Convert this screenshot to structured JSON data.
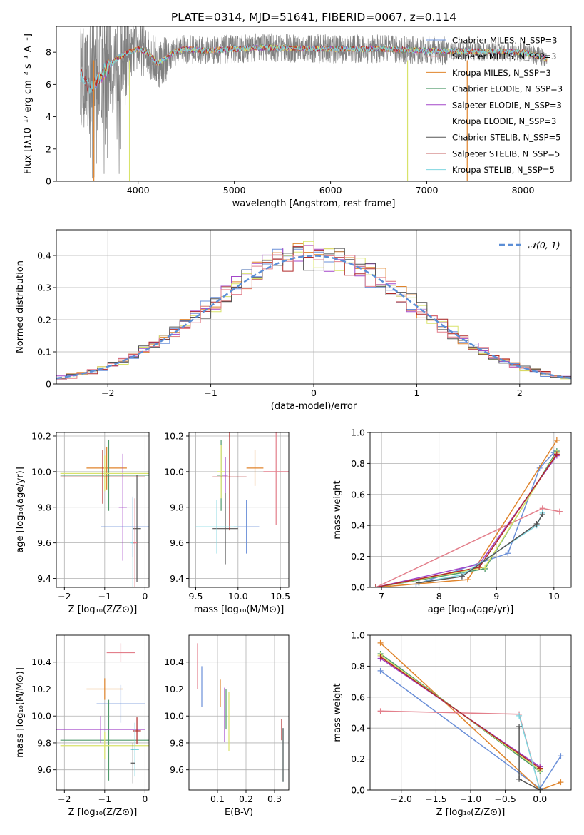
{
  "figure": {
    "title": "PLATE=0314, MJD=51641, FIBERID=0067, z=0.114"
  },
  "colors": {
    "chabrier_miles": "#6a8fd8",
    "salpeter_miles": "#e37f8b",
    "kroupa_miles": "#e0842b",
    "chabrier_elodie": "#4f9a6b",
    "salpeter_elodie": "#a347c9",
    "kroupa_elodie": "#d8e36a",
    "chabrier_stelib": "#555555",
    "salpeter_stelib": "#b02a2a",
    "kroupa_stelib": "#7fd6e0",
    "axes": "#000000",
    "grid": "#b0b0b0",
    "normal": "#5b8ed6"
  },
  "chart_data": [
    {
      "id": "spectrum",
      "type": "line",
      "xlabel": "wavelength [Angstrom, rest frame]",
      "ylabel": "Flux [fλ10⁻¹⁷ erg cm⁻² s⁻¹ A⁻¹]",
      "xlim": [
        3150,
        8500
      ],
      "ylim": [
        0,
        9.6
      ],
      "xticks": [
        4000,
        5000,
        6000,
        7000,
        8000
      ],
      "yticks": [
        0,
        2,
        4,
        6,
        8
      ],
      "grid": false,
      "legend_placement": "right",
      "legend": [
        "Chabrier MILES, N_SSP=3",
        "Salpeter MILES, N_SSP=3",
        "Kroupa MILES, N_SSP=3",
        "Chabrier ELODIE, N_SSP=3",
        "Salpeter ELODIE, N_SSP=3",
        "Kroupa ELODIE, N_SSP=3",
        "Chabrier STELIB, N_SSP=5",
        "Salpeter STELIB, N_SSP=5",
        "Kroupa STELIB, N_SSP=5"
      ],
      "continuum": {
        "x": [
          3400,
          3450,
          3500,
          3550,
          3600,
          3650,
          3700,
          3800,
          3900,
          4000,
          4100,
          4200,
          4300,
          4400,
          4500,
          4700,
          5000,
          5300,
          5600,
          6000,
          6500,
          7000,
          7500,
          8000,
          8250
        ],
        "y": [
          6.7,
          6.2,
          5.7,
          6.0,
          6.4,
          6.8,
          7.2,
          7.7,
          8.0,
          8.2,
          8.0,
          7.3,
          7.7,
          8.1,
          8.2,
          8.1,
          8.2,
          8.3,
          8.25,
          8.2,
          8.2,
          8.1,
          8.05,
          8.0,
          7.6
        ]
      }
    },
    {
      "id": "residuals",
      "type": "line",
      "xlabel": "(data-model)/error",
      "ylabel": "Normed distribution",
      "xlim": [
        -2.5,
        2.5
      ],
      "ylim": [
        0,
        0.48
      ],
      "xticks": [
        -2,
        -1,
        0,
        1,
        2
      ],
      "xtick_labels": [
        "−2",
        "−1",
        "0",
        "1",
        "2"
      ],
      "yticks": [
        0.0,
        0.1,
        0.2,
        0.3,
        0.4
      ],
      "grid": true,
      "legend_placement": "top-right",
      "legend": [
        "𝒩(0, 1)"
      ],
      "bin_width": 0.1
    },
    {
      "id": "age_vs_z",
      "type": "scatter",
      "xlabel": "Z [log₁₀(Z/Z⊙)]",
      "ylabel": "age  [log₁₀(age/yr)]",
      "xlim": [
        -2.2,
        0.1
      ],
      "ylim": [
        9.35,
        10.22
      ],
      "xticks": [
        -2,
        -1,
        0
      ],
      "xtick_labels": [
        "−2",
        "−1",
        "0"
      ],
      "yticks": [
        9.4,
        9.6,
        9.8,
        10.0,
        10.2
      ],
      "ytick_labels": [
        "9.4",
        "9.6",
        "9.8",
        "10.0",
        "10.2"
      ],
      "grid": true,
      "points": [
        {
          "series": "chabrier_miles",
          "x": -0.3,
          "xerr": 0.8,
          "y": 9.69,
          "yerr": 0.17
        },
        {
          "series": "kroupa_miles",
          "x": -0.95,
          "xerr": 0.5,
          "y": 10.02,
          "yerr": 0.12
        },
        {
          "series": "chabrier_elodie",
          "x": -0.9,
          "xerr": 1.2,
          "y": 9.98,
          "yerr": 0.2
        },
        {
          "series": "salpeter_elodie",
          "x": -0.55,
          "xerr": 0.1,
          "y": 9.8,
          "yerr": 0.3
        },
        {
          "series": "kroupa_elodie",
          "x": -1.0,
          "xerr": 1.1,
          "y": 9.99,
          "yerr": 0.1
        },
        {
          "series": "chabrier_stelib",
          "x": -0.2,
          "xerr": 0.1,
          "y": 9.68,
          "yerr": 0.3
        },
        {
          "series": "salpeter_stelib",
          "x": -1.05,
          "xerr": 1.05,
          "y": 9.97,
          "yerr": 0.15
        },
        {
          "series": "kroupa_stelib",
          "x": -0.3,
          "xerr": 0.05,
          "y": 9.6,
          "yerr": 0.25
        },
        {
          "series": "salpeter_miles",
          "x": -0.25,
          "xerr": 0.05,
          "y": 9.6,
          "yerr": 0.25
        }
      ]
    },
    {
      "id": "age_vs_mass",
      "type": "scatter",
      "xlabel": "mass [log₁₀(M/M⊙)]",
      "xlim": [
        9.42,
        10.6
      ],
      "ylim": [
        9.35,
        10.22
      ],
      "xticks": [
        9.5,
        10.0,
        10.5
      ],
      "xtick_labels": [
        "9.5",
        "10.0",
        "10.5"
      ],
      "yticks": [
        9.4,
        9.6,
        9.8,
        10.0,
        10.2
      ],
      "ytick_labels": [
        "9.4",
        "9.6",
        "9.8",
        "10.0",
        "10.2"
      ],
      "grid": true,
      "points": [
        {
          "series": "chabrier_miles",
          "x": 10.1,
          "xerr": 0.15,
          "y": 9.69,
          "yerr": 0.15
        },
        {
          "series": "kroupa_miles",
          "x": 10.2,
          "xerr": 0.1,
          "y": 10.02,
          "yerr": 0.1
        },
        {
          "series": "chabrier_elodie",
          "x": 9.8,
          "xerr": 0.05,
          "y": 9.98,
          "yerr": 0.2
        },
        {
          "series": "salpeter_elodie",
          "x": 9.85,
          "xerr": 0.03,
          "y": 9.98,
          "yerr": 0.1
        },
        {
          "series": "kroupa_elodie",
          "x": 9.8,
          "xerr": 0.05,
          "y": 10.0,
          "yerr": 0.15
        },
        {
          "series": "chabrier_stelib",
          "x": 9.85,
          "xerr": 0.15,
          "y": 9.68,
          "yerr": 0.2
        },
        {
          "series": "salpeter_stelib",
          "x": 9.9,
          "xerr": 0.2,
          "y": 9.97,
          "yerr": 0.3
        },
        {
          "series": "kroupa_stelib",
          "x": 9.75,
          "xerr": 0.25,
          "y": 9.69,
          "yerr": 0.15
        },
        {
          "series": "salpeter_miles",
          "x": 10.45,
          "xerr": 0.15,
          "y": 10.0,
          "yerr": 0.3
        }
      ]
    },
    {
      "id": "weight_vs_age",
      "type": "line",
      "xlabel": "age  [log₁₀(age/yr)]",
      "ylabel": "mass weight",
      "xlim": [
        6.8,
        10.3
      ],
      "ylim": [
        0,
        1.0
      ],
      "xticks": [
        7,
        8,
        9,
        10
      ],
      "yticks": [
        0.0,
        0.2,
        0.4,
        0.6,
        0.8,
        1.0
      ],
      "ytick_labels": [
        "0.0",
        "0.2",
        "0.4",
        "0.6",
        "0.8",
        "1.0"
      ],
      "grid": true,
      "series": [
        {
          "key": "chabrier_miles",
          "x": [
            7.6,
            9.2,
            9.75,
            10.0
          ],
          "y": [
            0.02,
            0.22,
            0.77,
            0.87
          ]
        },
        {
          "key": "kroupa_miles",
          "x": [
            6.9,
            8.5,
            10.05
          ],
          "y": [
            0.0,
            0.05,
            0.95
          ]
        },
        {
          "key": "salpeter_miles",
          "x": [
            6.9,
            9.8,
            10.1
          ],
          "y": [
            0.0,
            0.51,
            0.49
          ]
        },
        {
          "key": "chabrier_elodie",
          "x": [
            6.9,
            8.8,
            10.05
          ],
          "y": [
            0.0,
            0.12,
            0.88
          ]
        },
        {
          "key": "kroupa_elodie",
          "x": [
            6.9,
            8.8,
            10.05
          ],
          "y": [
            0.0,
            0.13,
            0.87
          ]
        },
        {
          "key": "salpeter_elodie",
          "x": [
            6.9,
            8.7,
            10.05
          ],
          "y": [
            0.0,
            0.15,
            0.85
          ]
        },
        {
          "key": "salpeter_stelib",
          "x": [
            6.9,
            8.7,
            10.05
          ],
          "y": [
            0.0,
            0.13,
            0.86
          ]
        },
        {
          "key": "kroupa_stelib",
          "x": [
            7.65,
            8.4,
            9.7,
            9.8
          ],
          "y": [
            0.03,
            0.08,
            0.4,
            0.48
          ]
        },
        {
          "key": "chabrier_stelib",
          "x": [
            7.65,
            8.4,
            9.7,
            9.8
          ],
          "y": [
            0.03,
            0.07,
            0.41,
            0.47
          ]
        }
      ]
    },
    {
      "id": "mass_vs_z",
      "type": "scatter",
      "xlabel": "Z [log₁₀(Z/Z⊙)]",
      "ylabel": "mass [log₁₀(M/M⊙)]",
      "xlim": [
        -2.2,
        0.1
      ],
      "ylim": [
        9.45,
        10.6
      ],
      "xticks": [
        -2,
        -1,
        0
      ],
      "xtick_labels": [
        "−2",
        "−1",
        "0"
      ],
      "yticks": [
        9.6,
        9.8,
        10.0,
        10.2,
        10.4
      ],
      "ytick_labels": [
        "9.6",
        "9.8",
        "10.0",
        "10.2",
        "10.4"
      ],
      "grid": true,
      "points": [
        {
          "series": "salpeter_miles",
          "x": -0.6,
          "xerr": 0.35,
          "y": 10.47,
          "yerr": 0.07
        },
        {
          "series": "kroupa_miles",
          "x": -1.0,
          "xerr": 0.45,
          "y": 10.2,
          "yerr": 0.08
        },
        {
          "series": "chabrier_miles",
          "x": -0.6,
          "xerr": 0.6,
          "y": 10.09,
          "yerr": 0.14
        },
        {
          "series": "chabrier_elodie",
          "x": -0.9,
          "xerr": 1.2,
          "y": 9.82,
          "yerr": 0.3
        },
        {
          "series": "salpeter_elodie",
          "x": -1.1,
          "xerr": 1.1,
          "y": 9.9,
          "yerr": 0.1
        },
        {
          "series": "kroupa_elodie",
          "x": -1.0,
          "xerr": 1.1,
          "y": 9.78,
          "yerr": 0.1
        },
        {
          "series": "salpeter_stelib",
          "x": -0.2,
          "xerr": 0.1,
          "y": 9.89,
          "yerr": 0.1
        },
        {
          "series": "kroupa_stelib",
          "x": -0.25,
          "xerr": 0.1,
          "y": 9.75,
          "yerr": 0.2
        },
        {
          "series": "chabrier_stelib",
          "x": -0.3,
          "xerr": 0.05,
          "y": 9.65,
          "yerr": 0.15
        }
      ]
    },
    {
      "id": "mass_vs_ebv",
      "type": "scatter",
      "xlabel": "E(B-V)",
      "xlim": [
        0.0,
        0.35
      ],
      "ylim": [
        9.45,
        10.6
      ],
      "xticks": [
        0.1,
        0.2,
        0.3
      ],
      "xtick_labels": [
        "0.1",
        "0.2",
        "0.3"
      ],
      "yticks": [
        9.6,
        9.8,
        10.0,
        10.2,
        10.4
      ],
      "ytick_labels": [
        "9.6",
        "9.8",
        "10.0",
        "10.2",
        "10.4"
      ],
      "grid": true,
      "points": [
        {
          "series": "salpeter_miles",
          "x": 0.03,
          "xerr": 0.0,
          "y": 10.37,
          "yerr": 0.17
        },
        {
          "series": "chabrier_miles",
          "x": 0.045,
          "xerr": 0.0,
          "y": 10.22,
          "yerr": 0.15
        },
        {
          "series": "kroupa_miles",
          "x": 0.11,
          "xerr": 0.0,
          "y": 10.17,
          "yerr": 0.1
        },
        {
          "series": "salpeter_elodie",
          "x": 0.125,
          "xerr": 0.0,
          "y": 10.01,
          "yerr": 0.2
        },
        {
          "series": "chabrier_elodie",
          "x": 0.13,
          "xerr": 0.0,
          "y": 10.05,
          "yerr": 0.15
        },
        {
          "series": "kroupa_elodie",
          "x": 0.14,
          "xerr": 0.0,
          "y": 9.96,
          "yerr": 0.22
        },
        {
          "series": "salpeter_stelib",
          "x": 0.325,
          "xerr": 0.0,
          "y": 9.9,
          "yerr": 0.08
        },
        {
          "series": "kroupa_stelib",
          "x": 0.33,
          "xerr": 0.0,
          "y": 9.71,
          "yerr": 0.2
        },
        {
          "series": "chabrier_stelib",
          "x": 0.33,
          "xerr": 0.0,
          "y": 9.71,
          "yerr": 0.2
        }
      ]
    },
    {
      "id": "weight_vs_z",
      "type": "line",
      "xlabel": "Z [log₁₀(Z/Z⊙)]",
      "ylabel": "mass weight",
      "xlim": [
        -2.45,
        0.45
      ],
      "ylim": [
        0,
        1.0
      ],
      "xticks": [
        -2.0,
        -1.5,
        -1.0,
        -0.5,
        0.0
      ],
      "xtick_labels": [
        "−2.0",
        "−1.5",
        "−1.0",
        "−0.5",
        "0.0"
      ],
      "yticks": [
        0.0,
        0.2,
        0.4,
        0.6,
        0.8,
        1.0
      ],
      "ytick_labels": [
        "0.0",
        "0.2",
        "0.4",
        "0.6",
        "0.8",
        "1.0"
      ],
      "grid": true,
      "series": [
        {
          "key": "chabrier_miles",
          "x": [
            -2.3,
            0.0,
            0.3
          ],
          "y": [
            0.77,
            0.01,
            0.22
          ]
        },
        {
          "key": "kroupa_miles",
          "x": [
            -2.3,
            0.0,
            0.3
          ],
          "y": [
            0.95,
            0.0,
            0.05
          ]
        },
        {
          "key": "salpeter_miles",
          "x": [
            -2.3,
            -0.3,
            0.0
          ],
          "y": [
            0.51,
            0.49,
            0.0
          ]
        },
        {
          "key": "chabrier_elodie",
          "x": [
            -2.3,
            0.0
          ],
          "y": [
            0.88,
            0.12
          ]
        },
        {
          "key": "kroupa_elodie",
          "x": [
            -2.3,
            0.0
          ],
          "y": [
            0.87,
            0.13
          ]
        },
        {
          "key": "salpeter_elodie",
          "x": [
            -2.3,
            0.0
          ],
          "y": [
            0.85,
            0.15
          ]
        },
        {
          "key": "salpeter_stelib",
          "x": [
            -2.3,
            0.0
          ],
          "y": [
            0.86,
            0.14
          ]
        },
        {
          "key": "kroupa_stelib",
          "x": [
            -0.3,
            0.0
          ],
          "y": [
            0.48,
            0.0
          ]
        },
        {
          "key": "chabrier_stelib",
          "x": [
            -0.3,
            -0.3,
            0.0
          ],
          "y": [
            0.41,
            0.07,
            0.0
          ]
        }
      ]
    }
  ]
}
